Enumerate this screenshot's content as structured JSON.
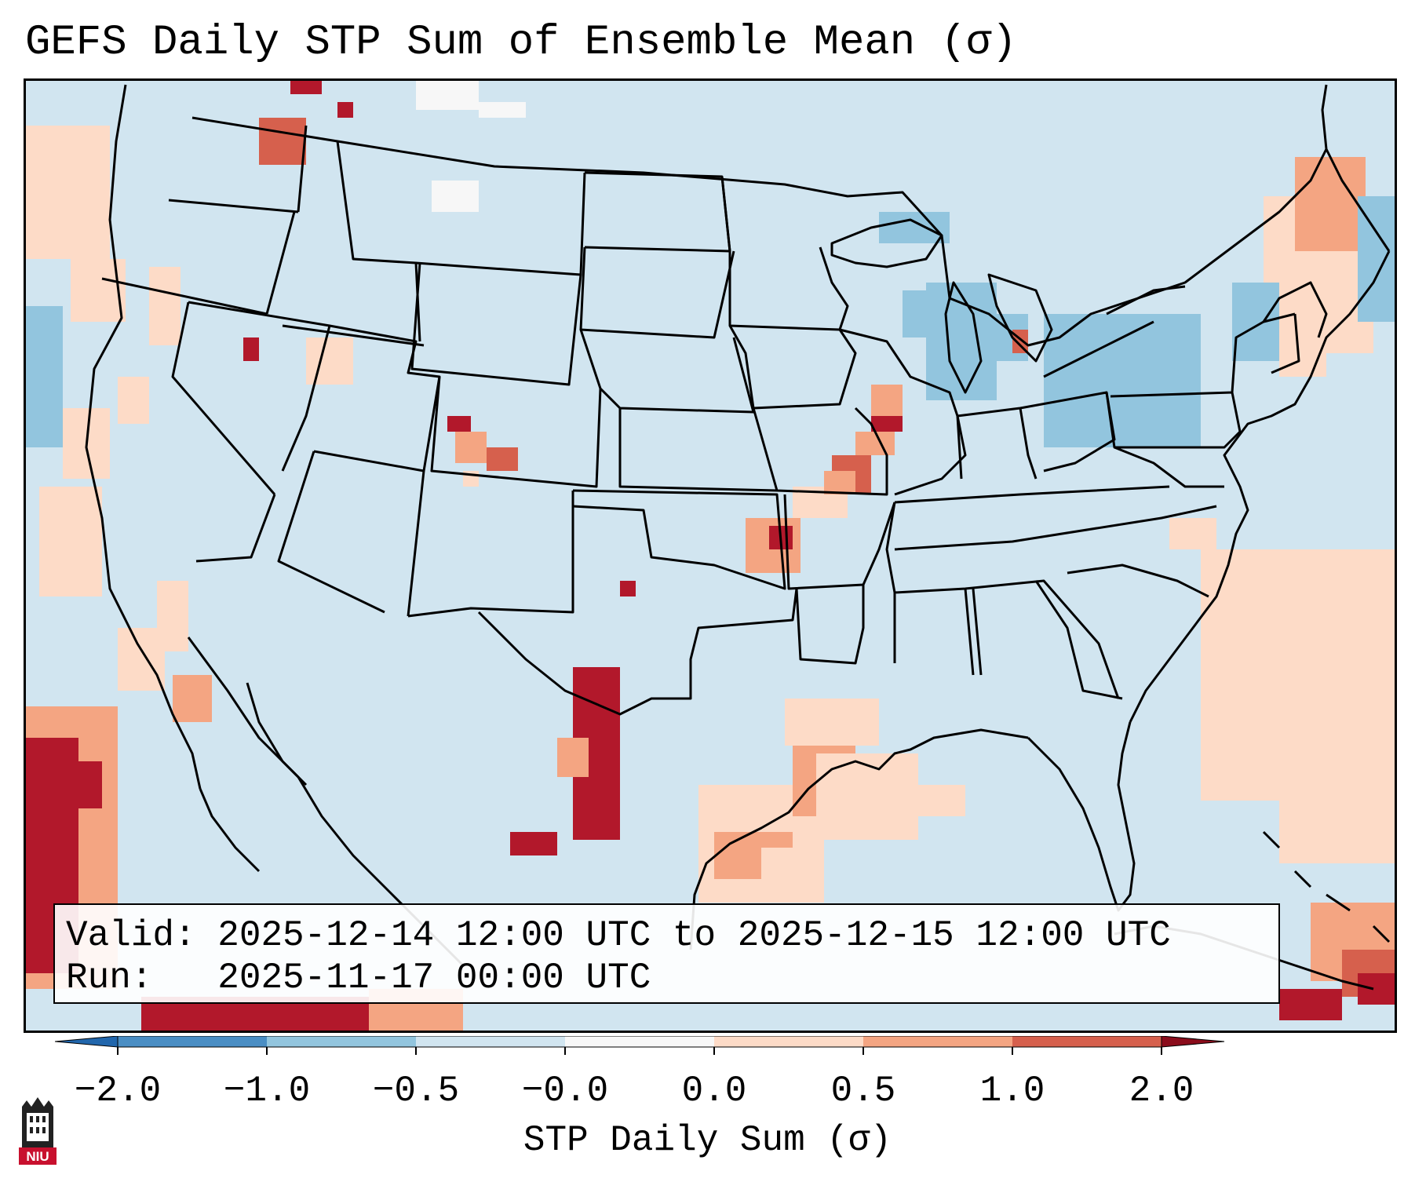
{
  "title": "GEFS Daily STP Sum of Ensemble Mean (σ)",
  "info": {
    "valid_line": "Valid: 2025-12-14 12:00 UTC to 2025-12-15 12:00 UTC",
    "run_line": "Run:   2025-11-17 00:00 UTC"
  },
  "colorbar": {
    "label": "STP Daily Sum (σ)",
    "ticks": [
      "−2.0",
      "−1.0",
      "−0.5",
      "−0.0",
      "0.0",
      "0.5",
      "1.0",
      "2.0"
    ],
    "colors": [
      "#4a8ec4",
      "#92c5de",
      "#d1e5f0",
      "#f7f7f7",
      "#fddbc7",
      "#f4a582",
      "#d6604d",
      "#b2182b"
    ],
    "under_color": "#2166ac",
    "over_color": "#8b0d1c"
  },
  "map": {
    "background_color": "#d1e5f0",
    "field_categories": {
      "light_blue": "#92c5de",
      "white": "#f7f7f7",
      "peach": "#fddbc7",
      "salmon": "#f4a582",
      "red": "#d6604d",
      "dark_red": "#b2182b"
    }
  },
  "logo": {
    "text": "NIU",
    "icon": "university-tower-icon"
  }
}
